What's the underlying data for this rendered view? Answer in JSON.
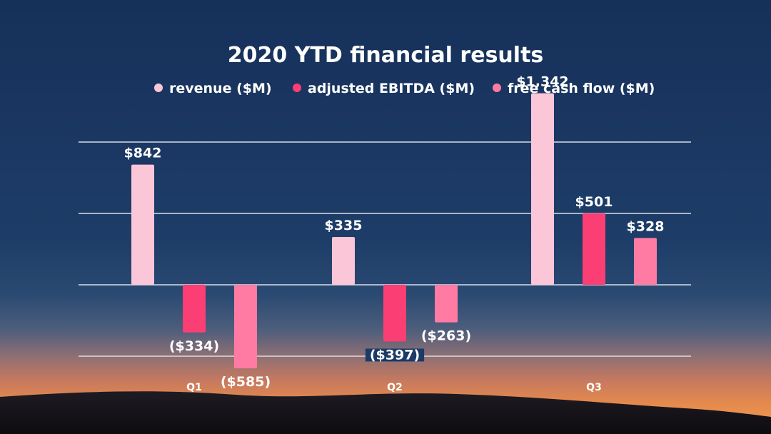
{
  "chart_data": {
    "type": "bar",
    "title": "2020 YTD financial results",
    "categories": [
      "Q1",
      "Q2",
      "Q3"
    ],
    "series": [
      {
        "name": "revenue ($M)",
        "color": "#fbc6d8",
        "values": [
          842,
          335,
          1342
        ],
        "labels": [
          "$842",
          "$335",
          "$1,342"
        ]
      },
      {
        "name": "adjusted EBITDA ($M)",
        "color": "#fb3f74",
        "values": [
          -334,
          -397,
          501
        ],
        "labels": [
          "($334)",
          "($397)",
          "$501"
        ]
      },
      {
        "name": "free cash flow ($M)",
        "color": "#ff7ba3",
        "values": [
          -585,
          -263,
          328
        ],
        "labels": [
          "($585)",
          "($263)",
          "$328"
        ]
      }
    ],
    "ylim": [
      -700,
      1400
    ],
    "grid": true,
    "legend": "top-center",
    "xlabel": "",
    "ylabel": ""
  }
}
